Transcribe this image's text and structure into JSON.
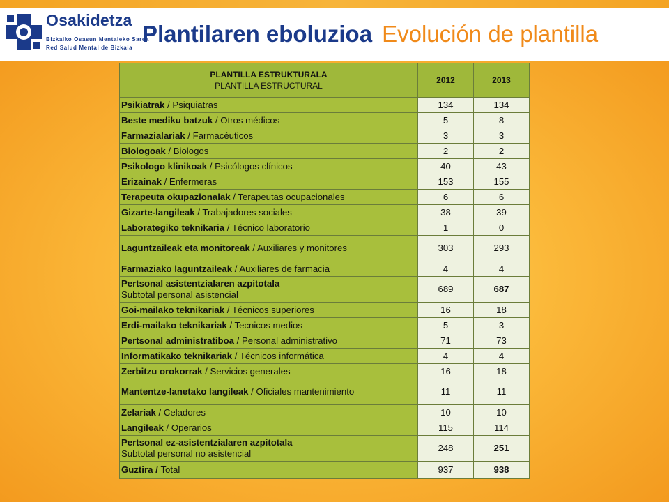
{
  "header": {
    "brand_name": "Osakidetza",
    "brand_sub1": "Bizkaiko Osasun Mentaleko Sarea",
    "brand_sub2": "Red Salud Mental de Bizkaia",
    "title_eu": "Plantilaren eboluzioa",
    "title_es": "Evolución de plantilla"
  },
  "colors": {
    "accent_blue": "#1b3a8a",
    "accent_orange": "#f08a1a",
    "table_green": "#a8bf3c",
    "cell_light": "#eef2e0"
  },
  "table": {
    "header_eu": "PLANTILLA ESTRUKTURALA",
    "header_es": "PLANTILLA ESTRUCTURAL",
    "years": [
      "2012",
      "2013"
    ],
    "rows": [
      {
        "eu": "Psikiatrak",
        "sep": " / ",
        "es": "Psiquiatras",
        "y2012": "134",
        "y2013": "134"
      },
      {
        "eu": "Beste mediku batzuk",
        "sep": " / ",
        "es": "Otros médicos",
        "y2012": "5",
        "y2013": "8"
      },
      {
        "eu": "Farmazialariak",
        "sep": " / ",
        "es": "Farmacéuticos",
        "y2012": "3",
        "y2013": "3"
      },
      {
        "eu": "Biologoak",
        "sep": " / ",
        "es": "Biologos",
        "y2012": "2",
        "y2013": "2"
      },
      {
        "eu": "Psikologo klinikoak",
        "sep": " / ",
        "es": "Psicólogos clínicos",
        "y2012": "40",
        "y2013": "43"
      },
      {
        "eu": "Erizainak",
        "sep": " / ",
        "es": "Enfermeras",
        "y2012": "153",
        "y2013": "155"
      },
      {
        "eu": "Terapeuta okupazionalak",
        "sep": " / ",
        "es": "Terapeutas ocupacionales",
        "y2012": "6",
        "y2013": "6"
      },
      {
        "eu": "Gizarte-langileak",
        "sep": " / ",
        "es": "Trabajadores sociales",
        "y2012": "38",
        "y2013": "39"
      },
      {
        "eu": "Laborategiko teknikaria",
        "sep": " / ",
        "es": "Técnico laboratorio",
        "y2012": "1",
        "y2013": "0"
      },
      {
        "eu": "Laguntzaileak eta monitoreak",
        "sep": " / ",
        "es": "Auxiliares y monitores",
        "y2012": "303",
        "y2013": "293"
      },
      {
        "eu": "Farmaziako laguntzaileak",
        "sep": " / ",
        "es": "Auxiliares de farmacia",
        "y2012": "4",
        "y2013": "4"
      },
      {
        "eu": "Pertsonal asistentzialaren azpitotala",
        "sep": "",
        "es": "Subtotal personal asistencial",
        "y2012": "689",
        "y2013": "687"
      },
      {
        "eu": "Goi-mailako teknikariak",
        "sep": " / ",
        "es": "Técnicos superiores",
        "y2012": "16",
        "y2013": "18"
      },
      {
        "eu": "Erdi-mailako teknikariak",
        "sep": " / ",
        "es": "Tecnicos medios",
        "y2012": "5",
        "y2013": "3"
      },
      {
        "eu": "Pertsonal administratiboa",
        "sep": " / ",
        "es": "Personal administrativo",
        "y2012": "71",
        "y2013": "73"
      },
      {
        "eu": "Informatikako teknikariak",
        "sep": " / ",
        "es": "Técnicos informática",
        "y2012": "4",
        "y2013": "4"
      },
      {
        "eu": "Zerbitzu orokorrak",
        "sep": " / ",
        "es": "Servicios generales",
        "y2012": "16",
        "y2013": "18"
      },
      {
        "eu": "Mantentze-lanetako langileak",
        "sep": " / ",
        "es": "Oficiales mantenimiento",
        "y2012": "11",
        "y2013": "11"
      },
      {
        "eu": "Zelariak",
        "sep": " / ",
        "es": "Celadores",
        "y2012": "10",
        "y2013": "10"
      },
      {
        "eu": "Langileak",
        "sep": " / ",
        "es": "Operarios",
        "y2012": "115",
        "y2013": "114"
      },
      {
        "eu": "Pertsonal ez-asistentzialaren azpitotala",
        "sep": "",
        "es": "Subtotal personal no asistencial",
        "y2012": "248",
        "y2013": "251"
      },
      {
        "eu": "Guztira",
        "sep": " / ",
        "es": "Total",
        "y2012": "937",
        "y2013": "938"
      }
    ]
  }
}
